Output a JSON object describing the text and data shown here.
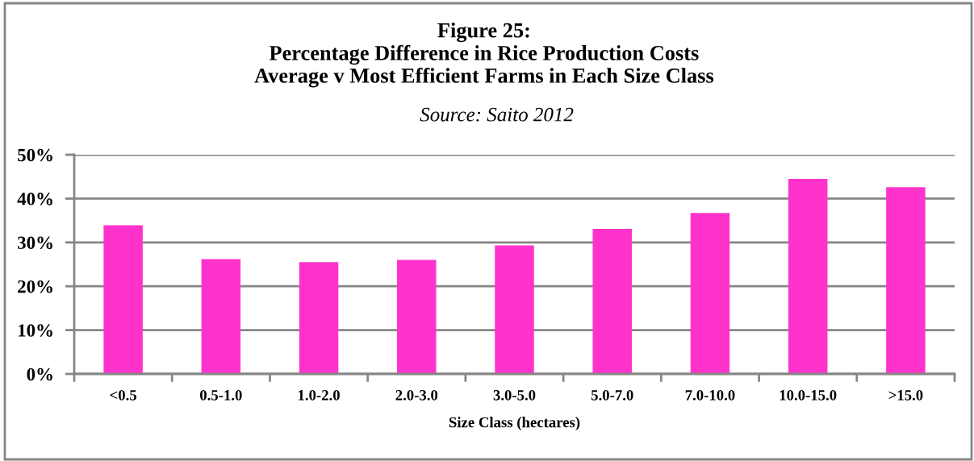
{
  "chart_data": {
    "type": "bar",
    "title": "Figure 25:\nPercentage Difference in Rice Production Costs\nAverage v Most Efficient Farms in Each Size Class",
    "annotations": [
      "Source: Saito 2012"
    ],
    "xlabel": "Size Class (hectares)",
    "categories": [
      "<0.5",
      "0.5-1.0",
      "1.0-2.0",
      "2.0-3.0",
      "3.0-5.0",
      "5.0-7.0",
      "7.0-10.0",
      "10.0-15.0",
      ">15.0"
    ],
    "values": [
      33.9,
      26.2,
      25.5,
      26.0,
      29.3,
      33.1,
      36.7,
      44.5,
      42.6
    ],
    "color": "#ff33cc",
    "ylim": [
      0,
      50
    ],
    "yticks": [
      {
        "value": 0,
        "label": "0%"
      },
      {
        "value": 10,
        "label": "10%"
      },
      {
        "value": 20,
        "label": "20%"
      },
      {
        "value": 30,
        "label": "30%"
      },
      {
        "value": 40,
        "label": "40%"
      },
      {
        "value": 50,
        "label": "50%"
      }
    ],
    "grid": "y"
  }
}
